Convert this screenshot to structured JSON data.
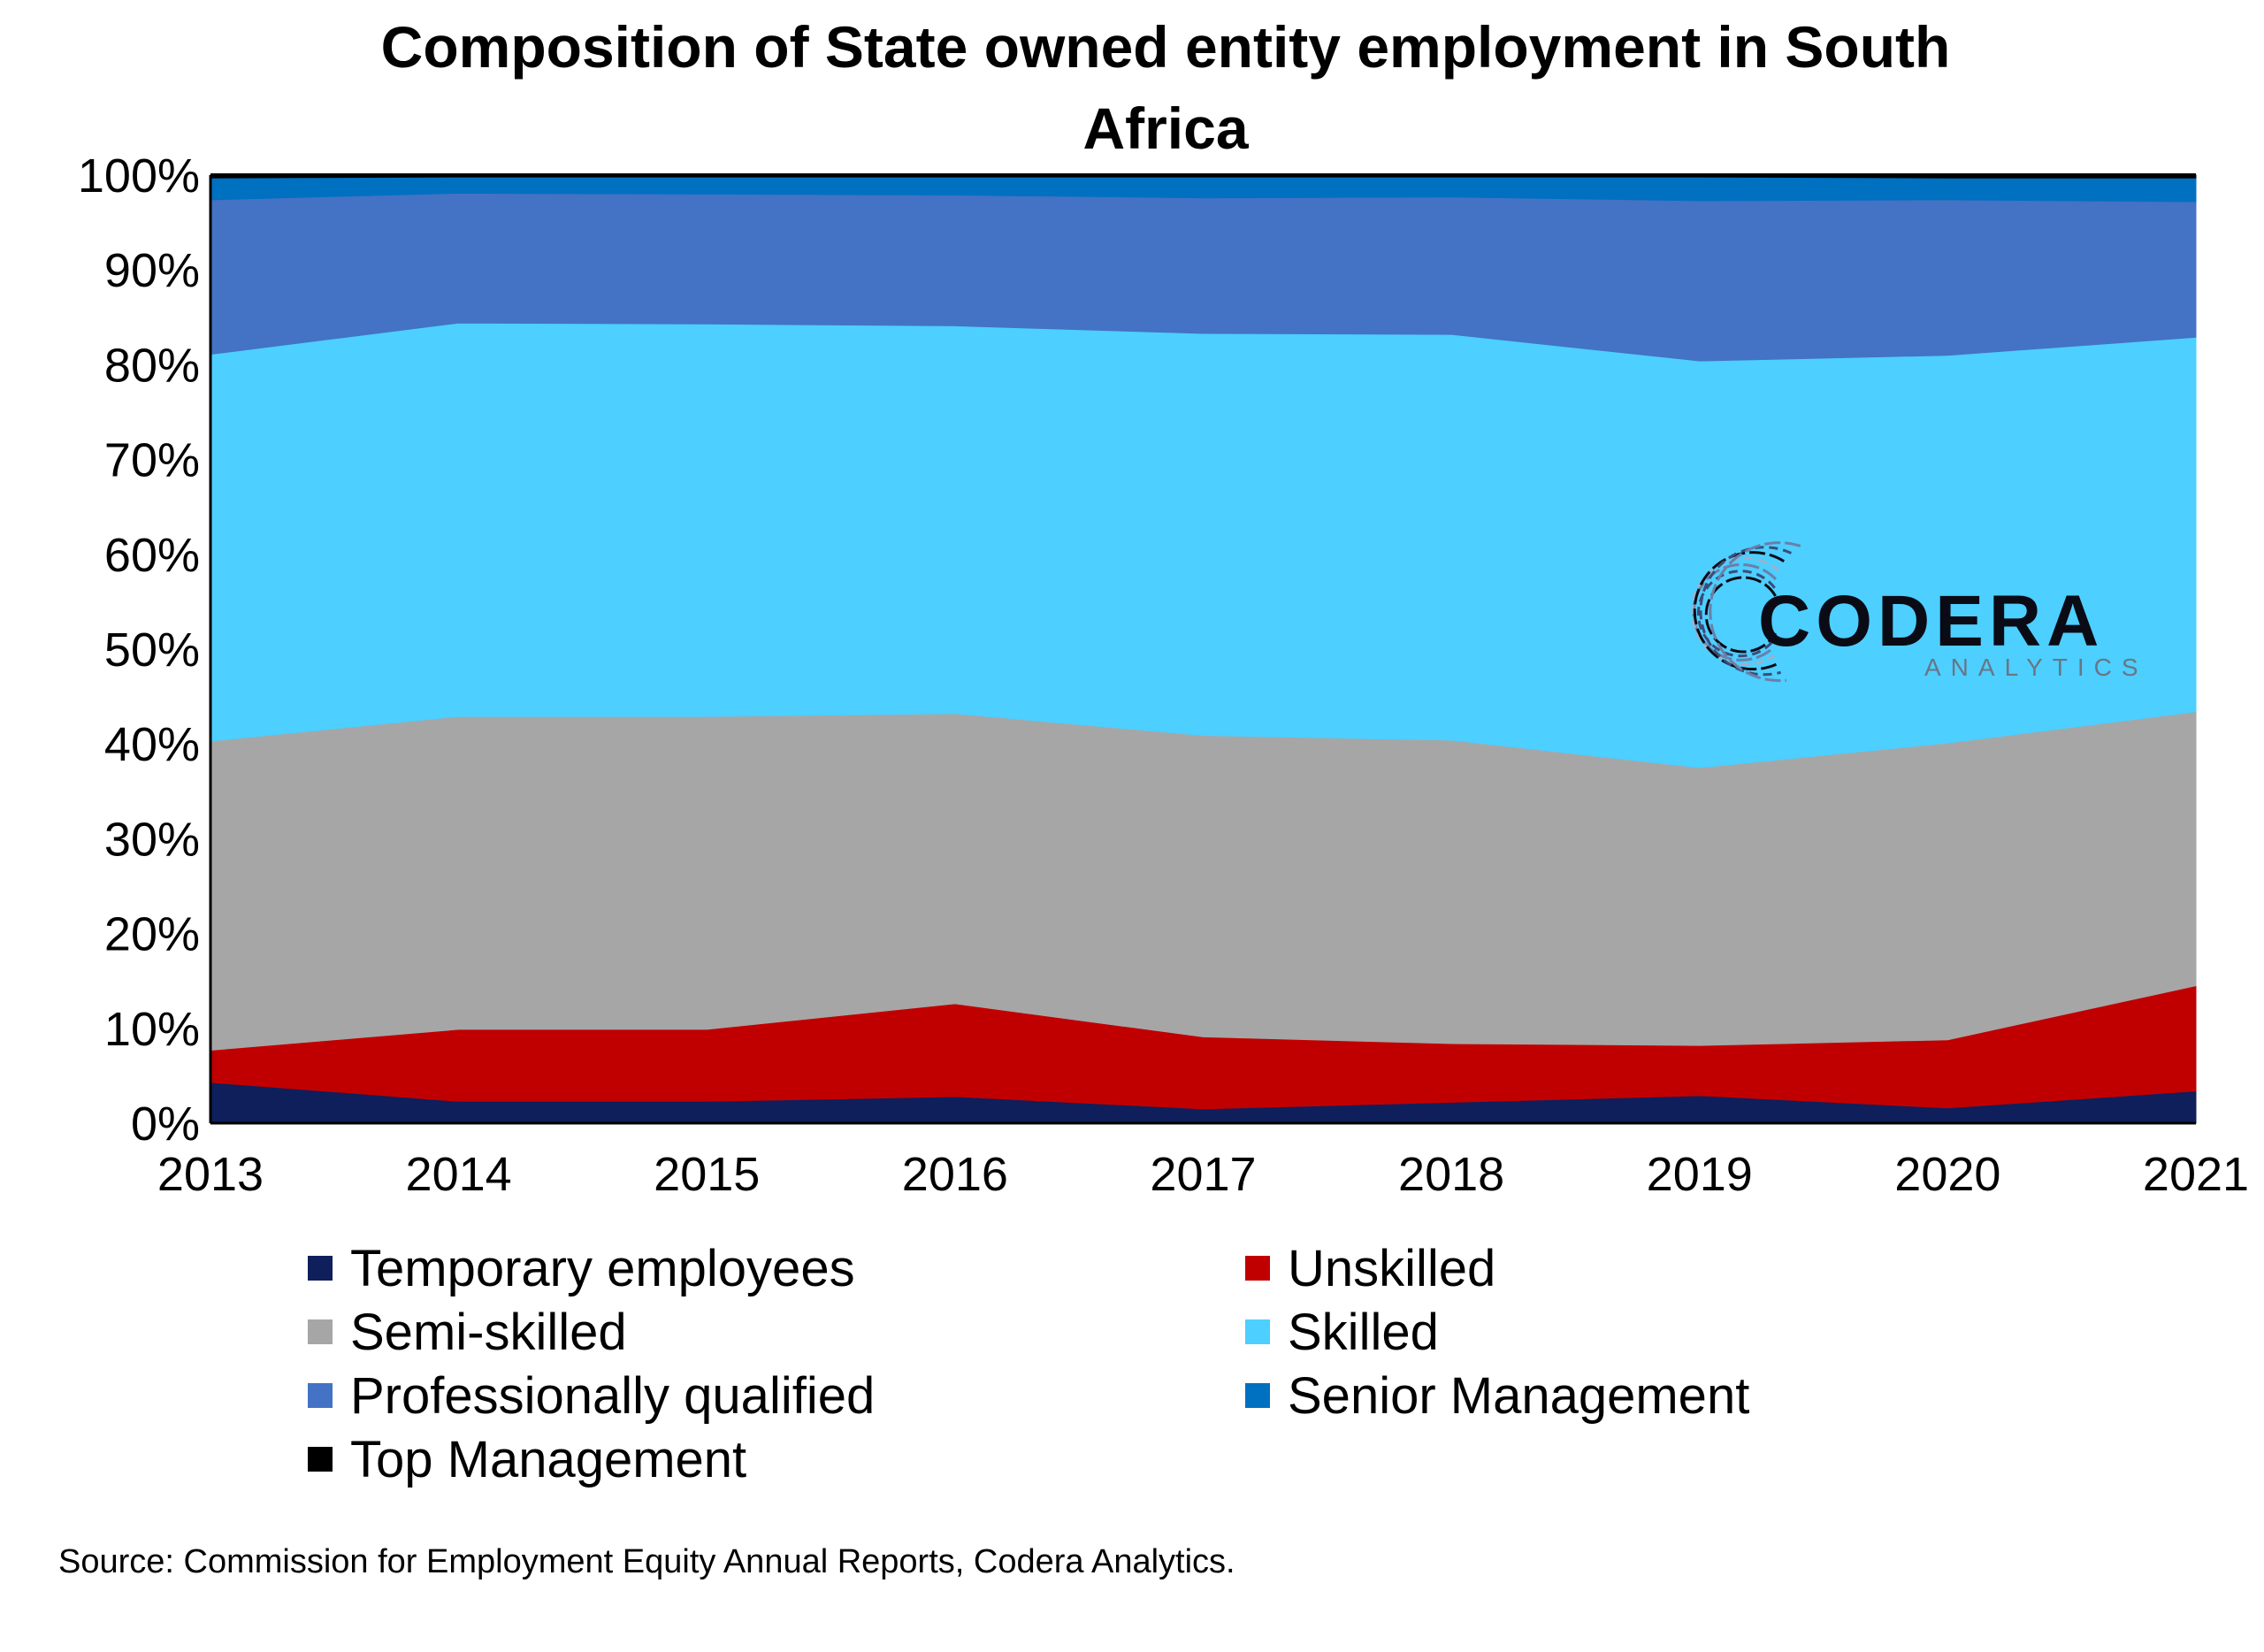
{
  "chart_data": {
    "type": "area",
    "stacked": "percent",
    "title_lines": [
      "Composition of State owned entity employment in South",
      "Africa"
    ],
    "x": [
      "2013",
      "2014",
      "2015",
      "2016",
      "2017",
      "2018",
      "2019",
      "2020",
      "2021"
    ],
    "ylim": [
      0,
      100
    ],
    "yticks": [
      "0%",
      "10%",
      "20%",
      "30%",
      "40%",
      "50%",
      "60%",
      "70%",
      "80%",
      "90%",
      "100%"
    ],
    "legend_position": "bottom",
    "series": [
      {
        "name": "Temporary employees",
        "color": "#0e1f5b",
        "values": [
          4.3,
          2.3,
          2.3,
          2.8,
          1.5,
          2.2,
          2.9,
          1.6,
          3.4
        ]
      },
      {
        "name": "Unskilled",
        "color": "#c00000",
        "values": [
          3.4,
          7.6,
          7.6,
          9.8,
          7.6,
          6.2,
          5.3,
          7.2,
          11.1
        ]
      },
      {
        "name": "Semi-skilled",
        "color": "#a6a6a6",
        "values": [
          32.6,
          33.0,
          33.0,
          30.6,
          31.8,
          32.0,
          29.3,
          31.3,
          28.9
        ]
      },
      {
        "name": "Skilled",
        "color": "#4dcfff",
        "values": [
          40.8,
          41.5,
          41.4,
          40.9,
          42.4,
          42.8,
          42.9,
          40.9,
          39.5
        ]
      },
      {
        "name": "Professionally qualified",
        "color": "#4472c4",
        "values": [
          16.3,
          13.7,
          13.7,
          13.8,
          14.3,
          14.5,
          16.9,
          16.4,
          14.3
        ]
      },
      {
        "name": "Senior Management",
        "color": "#0070c0",
        "values": [
          2.3,
          1.7,
          1.8,
          1.9,
          2.2,
          2.1,
          2.5,
          2.3,
          2.5
        ]
      },
      {
        "name": "Top Management",
        "color": "#000000",
        "values": [
          0.3,
          0.2,
          0.2,
          0.2,
          0.2,
          0.2,
          0.2,
          0.3,
          0.3
        ]
      }
    ],
    "source": "Source: Commission for Employment Equity Annual Reports, Codera Analytics."
  },
  "logo": {
    "name": "CODERA",
    "tagline": "ANALYTICS",
    "icon": "circuit-ring-icon"
  }
}
